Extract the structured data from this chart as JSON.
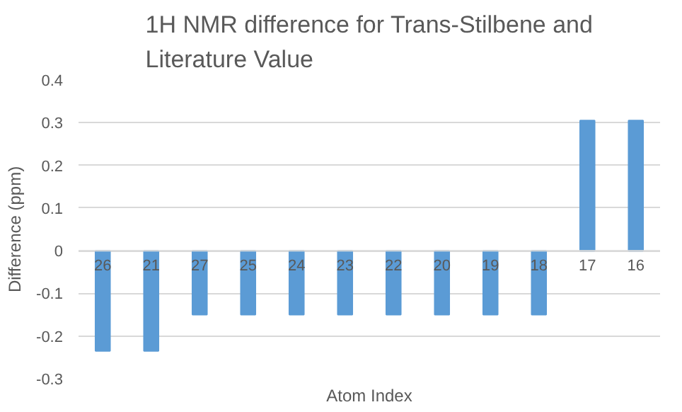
{
  "chart_data": {
    "type": "bar",
    "title": "1H NMR difference for Trans-Stilbene and\nLiterature Value",
    "xlabel": "Atom Index",
    "ylabel": "Difference (ppm)",
    "categories": [
      "26",
      "21",
      "27",
      "25",
      "24",
      "23",
      "22",
      "20",
      "19",
      "18",
      "17",
      "16"
    ],
    "values": [
      -0.235,
      -0.235,
      -0.15,
      -0.15,
      -0.15,
      -0.15,
      -0.15,
      -0.15,
      -0.15,
      -0.15,
      0.305,
      0.305
    ],
    "color": "#5b9bd5",
    "ylim": [
      -0.3,
      0.4
    ],
    "yticks": [
      {
        "value": -0.3,
        "label": "-0.3"
      },
      {
        "value": -0.2,
        "label": "-0.2"
      },
      {
        "value": -0.1,
        "label": "-0.1"
      },
      0,
      0.1,
      0.2,
      0.3,
      0.4
    ],
    "grid": "y"
  }
}
